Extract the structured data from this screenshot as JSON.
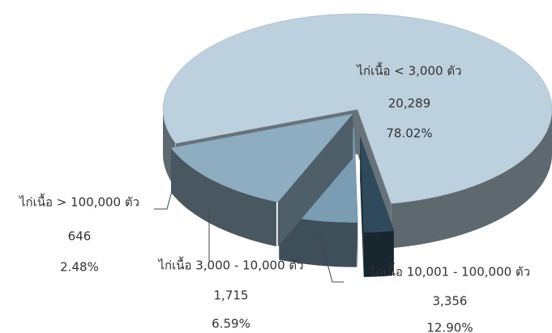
{
  "chart_data": {
    "type": "pie",
    "categories": [
      "ไก่เนื้อ < 3,000 ตัว",
      "ไก่เนื้อ 10,001 - 100,000 ตัว",
      "ไก่เนื้อ 3,000 - 10,000 ตัว",
      "ไก่เนื้อ > 100,000 ตัว"
    ],
    "values": [
      20289,
      3356,
      1715,
      646
    ],
    "value_labels": [
      "20,289",
      "3,356",
      "1,715",
      "646"
    ],
    "percentages": [
      78.02,
      12.9,
      6.59,
      2.48
    ],
    "percentage_labels": [
      "78.02%",
      "12.90%",
      "6.59%",
      "2.48%"
    ],
    "colors": [
      "#bcd0dd",
      "#8fadc0",
      "#7b9db3",
      "#2f4b5b"
    ]
  }
}
